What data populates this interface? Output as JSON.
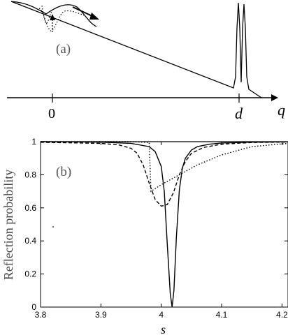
{
  "panel_a": {
    "label": "(a)",
    "x_axis_symbol": "q",
    "tick_labels": [
      "0",
      "d"
    ]
  },
  "chart_data": {
    "type": "line",
    "label": "(b)",
    "xlabel": "s",
    "ylabel": "Reflection probability",
    "xlim": [
      3.8,
      4.21
    ],
    "ylim": [
      0,
      1
    ],
    "xticks": [
      3.8,
      3.9,
      4,
      4.1,
      4.2
    ],
    "xtick_labels": [
      "3.8",
      "3.9",
      "4",
      "4.1",
      "4.2"
    ],
    "yticks": [
      0,
      0.2,
      0.4,
      0.6,
      0.8,
      1
    ],
    "ytick_labels": [
      "0",
      "0.2",
      "0.4",
      "0.6",
      "0.8",
      "1"
    ],
    "grid": false,
    "series": [
      {
        "style": "solid",
        "x": [
          3.8,
          3.9,
          3.95,
          3.98,
          3.99,
          4.0,
          4.005,
          4.01,
          4.015,
          4.018,
          4.021,
          4.025,
          4.03,
          4.035,
          4.04,
          4.05,
          4.06,
          4.08,
          4.1,
          4.15,
          4.21
        ],
        "y": [
          1.0,
          0.997,
          0.99,
          0.97,
          0.94,
          0.85,
          0.7,
          0.38,
          0.08,
          0.0,
          0.1,
          0.42,
          0.71,
          0.84,
          0.9,
          0.95,
          0.97,
          0.985,
          0.992,
          0.997,
          0.999
        ]
      },
      {
        "style": "dashed",
        "x": [
          3.8,
          3.9,
          3.93,
          3.95,
          3.96,
          3.97,
          3.98,
          3.99,
          4.0,
          4.01,
          4.02,
          4.03,
          4.04,
          4.05,
          4.07,
          4.1,
          4.15,
          4.21
        ],
        "y": [
          0.996,
          0.99,
          0.98,
          0.96,
          0.93,
          0.86,
          0.75,
          0.65,
          0.61,
          0.62,
          0.69,
          0.8,
          0.88,
          0.93,
          0.965,
          0.985,
          0.995,
          0.998
        ]
      },
      {
        "style": "dotted",
        "x": [
          3.8,
          3.9,
          3.95,
          3.98,
          3.983,
          4.0,
          4.03,
          4.06,
          4.1,
          4.15,
          4.21
        ],
        "y": [
          1.0,
          1.0,
          1.0,
          0.995,
          0.7,
          0.74,
          0.8,
          0.86,
          0.92,
          0.97,
          0.99
        ]
      }
    ],
    "reference_line": {
      "style": "solid",
      "y": 1
    }
  }
}
